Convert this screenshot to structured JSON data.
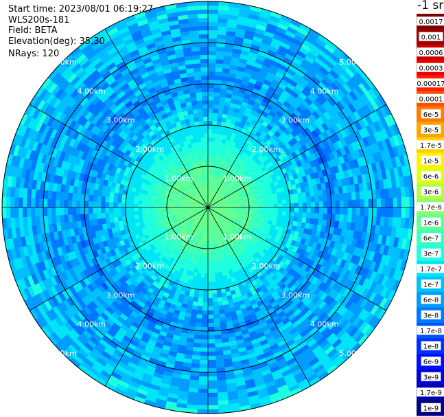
{
  "header": {
    "start_time_label": "Start time: 2023/08/01 06:19:27",
    "instrument": "WLS200s-181",
    "field_label": "Field: BETA",
    "elevation_label": "Elevation(deg): 35.30",
    "nrays_label": "NRays: 120"
  },
  "colorbar": {
    "unit": "-1 sr",
    "labels": [
      "0.0017",
      "0.001",
      "0.0006",
      "0.0003",
      "0.00017",
      "0.0001",
      "6e-5",
      "3e-5",
      "1.7e-5",
      "1e-5",
      "6e-6",
      "3e-6",
      "1.7e-6",
      "1e-6",
      "6e-7",
      "3e-7",
      "1.7e-7",
      "1e-7",
      "6e-8",
      "3e-8",
      "1.7e-8",
      "1e-8",
      "6e-9",
      "3e-9",
      "1.7e-9",
      "1e-9"
    ],
    "colors": [
      "#7f0000",
      "#a00000",
      "#c80000",
      "#ee0000",
      "#ff2000",
      "#ff5000",
      "#ff7c00",
      "#ffa500",
      "#ffd000",
      "#fff200",
      "#dcff1b",
      "#b4ff43",
      "#8cff6b",
      "#63ff94",
      "#3bffbc",
      "#1effe0",
      "#00e4f8",
      "#00c0ff",
      "#009cff",
      "#0078ff",
      "#0054ff",
      "#0030ff",
      "#000cff",
      "#0000d8",
      "#0000a8",
      "#000080"
    ],
    "white_text_from_index": 0,
    "white_text_dark_count": 4
  },
  "chart_data": {
    "type": "heatmap",
    "projection": "polar (PPI scan)",
    "field": "BETA",
    "unit": "-1 sr",
    "n_rays": 120,
    "elevation_deg": 35.3,
    "start_time": "2023/08/01 06:19:27",
    "range_rings_km": [
      1,
      2,
      3,
      4,
      5
    ],
    "range_ring_labels": [
      "1.00km",
      "2.00km",
      "3.00km",
      "4.00km",
      "5.00km"
    ],
    "max_range_km": 5.0,
    "spokes_deg": [
      0,
      30,
      60,
      90,
      120,
      150,
      180,
      210,
      240,
      270,
      300,
      330
    ],
    "radial_profile": [
      {
        "range_km": 0.0,
        "beta": 1.7e-06
      },
      {
        "range_km": 1.0,
        "beta": 1e-06
      },
      {
        "range_km": 1.3,
        "beta": 6e-07
      },
      {
        "range_km": 1.7,
        "beta": 3e-07
      },
      {
        "range_km": 2.2,
        "beta": 1.7e-07
      },
      {
        "range_km": 2.6,
        "beta": 1e-07
      },
      {
        "range_km": 3.0,
        "beta": 6e-08
      },
      {
        "range_km": 3.5,
        "beta": 1e-07
      },
      {
        "range_km": 4.2,
        "beta": 1e-07
      },
      {
        "range_km": 5.0,
        "beta": 1.7e-07
      }
    ]
  }
}
